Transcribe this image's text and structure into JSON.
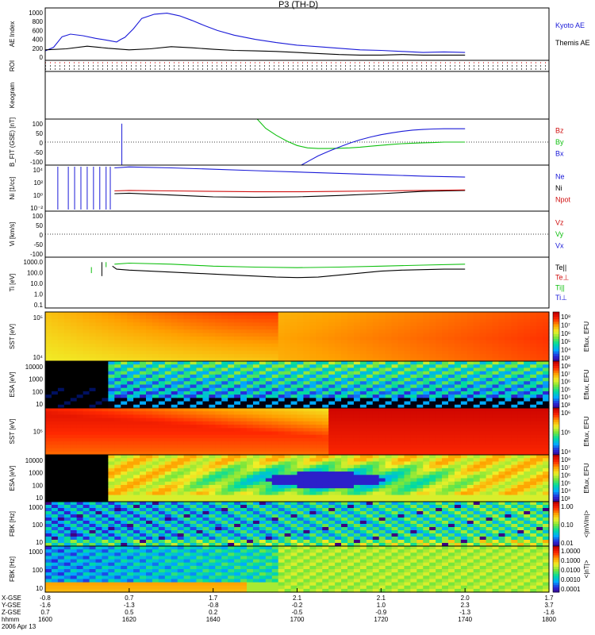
{
  "title": "P3 (TH-D)",
  "colors": {
    "blue": "#1a1ad8",
    "red": "#d01010",
    "green": "#10c010",
    "black": "#000000",
    "label_red": "#cc0000",
    "label_green": "#22bb22",
    "label_blue": "#1111aa"
  },
  "chart_data": [
    {
      "type": "line",
      "panel": "ae",
      "ylabel": "AE Index",
      "ylim": [
        0,
        1000
      ],
      "yticks": [
        "0",
        "200",
        "400",
        "600",
        "800",
        "1000"
      ],
      "series": [
        {
          "name": "Kyoto AE",
          "color": "#1a1ad8",
          "x": [
            0,
            4,
            8,
            12,
            18,
            24,
            30,
            34,
            36,
            38,
            42,
            46,
            52,
            58,
            64,
            70,
            76,
            82,
            90,
            100,
            110,
            120,
            130,
            140,
            150,
            160,
            170,
            180,
            190,
            200
          ],
          "values": [
            180,
            250,
            450,
            500,
            470,
            420,
            380,
            350,
            400,
            440,
            600,
            800,
            880,
            900,
            850,
            760,
            660,
            570,
            480,
            400,
            340,
            290,
            260,
            230,
            200,
            190,
            170,
            150,
            160,
            150
          ]
        },
        {
          "name": "Themis AE",
          "color": "#000000",
          "x": [
            0,
            10,
            20,
            30,
            40,
            50,
            60,
            70,
            80,
            90,
            100,
            110,
            120,
            130,
            140,
            150,
            160,
            170,
            180,
            190,
            200
          ],
          "values": [
            200,
            220,
            270,
            230,
            200,
            220,
            260,
            240,
            210,
            190,
            180,
            170,
            150,
            130,
            110,
            100,
            100,
            110,
            100,
            100,
            100
          ]
        }
      ]
    },
    {
      "type": "roi",
      "panel": "roi",
      "ylabel": "ROI",
      "rows": 3,
      "row_colors": [
        "#d01010",
        "#000000",
        "#000000"
      ]
    },
    {
      "type": "blank",
      "panel": "keogram",
      "ylabel": "Keogram"
    },
    {
      "type": "line",
      "panel": "bfit",
      "ylabel": "B_FIT (GSE) [nT]",
      "ylim": [
        -100,
        100
      ],
      "yticks": [
        "-100",
        "-50",
        "0",
        "50",
        "100"
      ],
      "series": [
        {
          "name": "Bz",
          "color": "#d01010",
          "x": [],
          "values": []
        },
        {
          "name": "By",
          "color": "#10c010",
          "x": [
            101,
            105,
            110,
            115,
            120,
            125,
            130,
            135,
            140,
            145,
            150,
            155,
            160,
            165,
            170,
            175,
            180,
            185,
            190,
            195,
            200
          ],
          "values": [
            100,
            60,
            30,
            5,
            -15,
            -25,
            -28,
            -28,
            -27,
            -25,
            -22,
            -18,
            -14,
            -10,
            -7,
            -5,
            -3,
            -2,
            0,
            0,
            0
          ]
        },
        {
          "name": "Bx",
          "color": "#1a1ad8",
          "x": [
            122,
            126,
            130,
            135,
            140,
            145,
            150,
            155,
            160,
            165,
            170,
            175,
            180,
            185,
            190,
            195,
            200
          ],
          "values": [
            -100,
            -80,
            -60,
            -40,
            -22,
            -5,
            10,
            22,
            32,
            40,
            47,
            52,
            55,
            57,
            58,
            58,
            58
          ]
        }
      ],
      "spike": {
        "x": 36.5,
        "values": [
          80,
          -100
        ]
      }
    },
    {
      "type": "line",
      "panel": "ni",
      "scale": "log",
      "ylabel": "Ni [1/cc]",
      "ylim": [
        -5,
        5
      ],
      "yticks": [
        "10⁻²",
        "10⁰",
        "10²",
        "10⁴"
      ],
      "series": [
        {
          "name": "Ne",
          "color": "#1a1ad8",
          "x": [
            33,
            40,
            60,
            80,
            100,
            120,
            140,
            160,
            180,
            200
          ],
          "values": [
            4.4,
            4.6,
            4.4,
            4.1,
            3.8,
            3.5,
            3.2,
            2.9,
            2.6,
            2.4
          ]
        },
        {
          "name": "Ni",
          "color": "#000000",
          "x": [
            33,
            40,
            60,
            80,
            100,
            120,
            140,
            160,
            180,
            200
          ],
          "values": [
            -1.2,
            -1.1,
            -1.5,
            -1.9,
            -2.0,
            -1.9,
            -1.6,
            -1.2,
            -0.7,
            -0.5
          ]
        },
        {
          "name": "Npot",
          "color": "#d01010",
          "x": [
            33,
            40,
            60,
            80,
            100,
            120,
            140,
            160,
            180,
            200
          ],
          "values": [
            -0.6,
            -0.5,
            -0.6,
            -0.7,
            -0.8,
            -0.8,
            -0.7,
            -0.6,
            -0.5,
            -0.4
          ]
        }
      ]
    },
    {
      "type": "line",
      "panel": "vi",
      "ylabel": "Vi [km/s]",
      "ylim": [
        -130,
        130
      ],
      "yticks": [
        "-100",
        "-50",
        "0",
        "50",
        "100"
      ],
      "series": [
        {
          "name": "Vz",
          "color": "#d01010",
          "x": [],
          "values": []
        },
        {
          "name": "Vy",
          "color": "#10c010",
          "x": [],
          "values": []
        },
        {
          "name": "Vx",
          "color": "#1a1ad8",
          "x": [],
          "values": []
        }
      ]
    },
    {
      "type": "line",
      "panel": "ti",
      "scale": "log",
      "ylabel": "Ti [eV]",
      "ylim": [
        -1.3,
        3.8
      ],
      "yticks": [
        "0.1",
        "1.0",
        "10.0",
        "100.0",
        "1000.0"
      ],
      "series": [
        {
          "name": "Te||",
          "color": "#000000",
          "x": [
            32,
            34,
            40,
            60,
            80,
            100,
            110,
            120,
            130,
            140,
            150,
            160,
            170,
            180,
            190,
            200
          ],
          "values": [
            2.9,
            2.6,
            2.5,
            2.3,
            2.1,
            1.9,
            1.8,
            1.75,
            1.8,
            2.0,
            2.2,
            2.4,
            2.5,
            2.55,
            2.6,
            2.6
          ]
        },
        {
          "name": "Te⊥",
          "color": "#d01010",
          "x": [],
          "values": []
        },
        {
          "name": "Ti||",
          "color": "#10c010",
          "x": [
            33,
            40,
            60,
            80,
            100,
            120,
            140,
            160,
            180,
            200
          ],
          "values": [
            3.1,
            3.2,
            3.1,
            2.9,
            2.8,
            2.75,
            2.8,
            2.9,
            3.0,
            3.1
          ]
        },
        {
          "name": "Ti⊥",
          "color": "#1a1ad8",
          "x": [],
          "values": []
        }
      ]
    },
    {
      "type": "heatmap",
      "panel": "sst_e",
      "ylabel": "SST [eV]",
      "yticks": [
        "10⁴",
        "10⁵"
      ],
      "colorbar": {
        "label": "Eflux, EFU",
        "ticks": [
          "10³",
          "10⁴",
          "10⁵",
          "10⁶",
          "10⁷",
          "10⁸"
        ]
      }
    },
    {
      "type": "heatmap",
      "panel": "esa_e",
      "ylabel": "ESA [eV]",
      "yticks": [
        "10",
        "100",
        "1000",
        "10000"
      ],
      "colorbar": {
        "label": "Eflux, EFU",
        "ticks": [
          "10³",
          "10⁴",
          "10⁵",
          "10⁶",
          "10⁷",
          "10⁸"
        ]
      }
    },
    {
      "type": "heatmap",
      "panel": "sst_i",
      "ylabel": "SST [eV]",
      "yticks": [
        "10⁵"
      ],
      "colorbar": {
        "label": "Eflux, EFU",
        "ticks": [
          "10⁴",
          "10⁵",
          "10⁶"
        ]
      }
    },
    {
      "type": "heatmap",
      "panel": "esa_i",
      "ylabel": "ESA [eV]",
      "yticks": [
        "10",
        "100",
        "1000",
        "10000"
      ],
      "colorbar": {
        "label": "Eflux, EFU",
        "ticks": [
          "10³",
          "10⁴",
          "10⁵",
          "10⁶",
          "10⁷",
          "10⁸"
        ]
      }
    },
    {
      "type": "heatmap",
      "panel": "fbk_e",
      "ylabel": "FBK [Hz]",
      "yticks": [
        "10",
        "100",
        "1000"
      ],
      "colorbar": {
        "label": "<|mV/m|>",
        "ticks": [
          "0.01",
          "0.10",
          "1.00"
        ]
      }
    },
    {
      "type": "heatmap",
      "panel": "fbk_b",
      "ylabel": "FBK [Hz]",
      "yticks": [
        "10",
        "100",
        "1000"
      ],
      "colorbar": {
        "label": "<|nT|>",
        "ticks": [
          "0.0001",
          "0.0010",
          "0.0100",
          "0.1000",
          "1.0000"
        ]
      }
    }
  ],
  "xaxis": {
    "row_labels": [
      "X-GSE",
      "Y-GSE",
      "Z-GSE",
      "hhmm",
      "2006 Apr 13"
    ],
    "ticks": [
      {
        "x": 0,
        "values": [
          "-0.8",
          "-1.6",
          "0.7",
          "1600"
        ]
      },
      {
        "x": 40,
        "values": [
          "0.7",
          "-1.3",
          "0.5",
          "1620"
        ]
      },
      {
        "x": 80,
        "values": [
          "1.7",
          "-0.8",
          "0.2",
          "1640"
        ]
      },
      {
        "x": 120,
        "values": [
          "2.1",
          "-0.2",
          "-0.5",
          "1700"
        ]
      },
      {
        "x": 160,
        "values": [
          "2.1",
          "1.0",
          "-0.9",
          "1720"
        ]
      },
      {
        "x": 200,
        "values": [
          "2.0",
          "2.3",
          "-1.3",
          "1740"
        ]
      },
      {
        "x": 240,
        "values": [
          "1.7",
          "3.7",
          "-1.6",
          "1800"
        ]
      }
    ]
  }
}
